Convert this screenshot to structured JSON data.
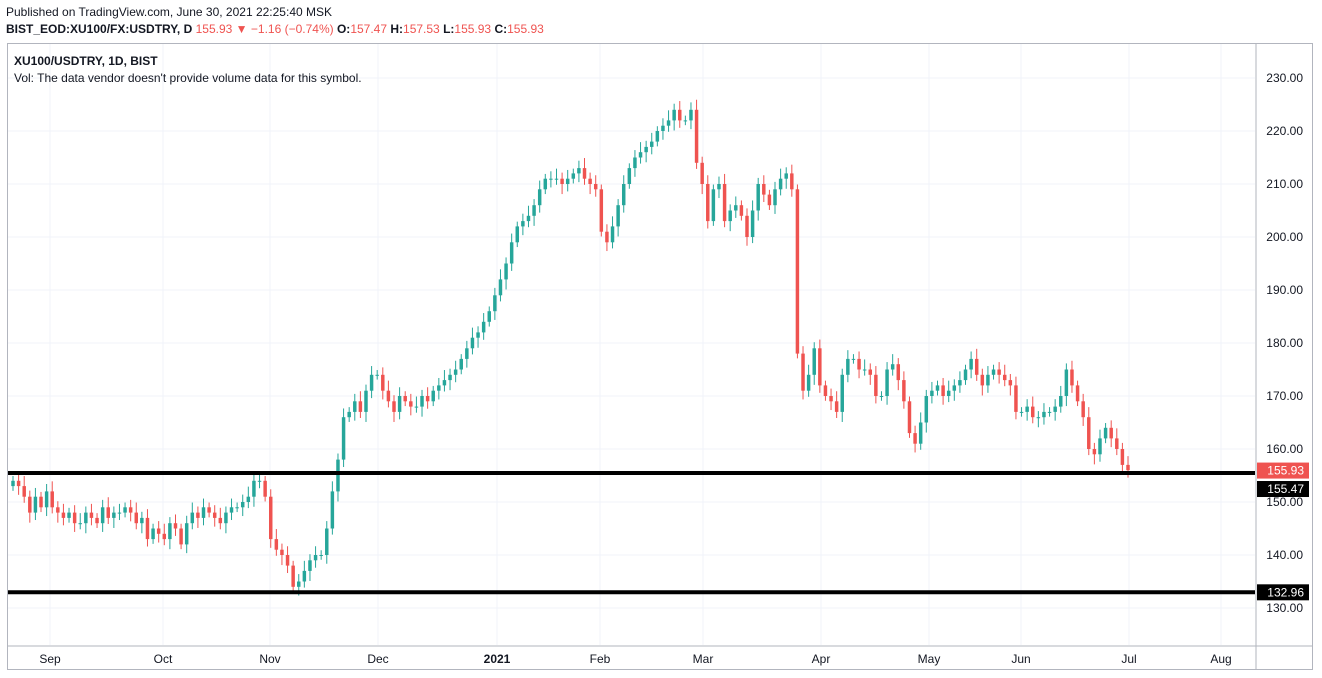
{
  "header": {
    "published": "Published on TradingView.com, June 30, 2021 22:25:40 MSK",
    "symbol_full": "BIST_EOD:XU100/FX:USDTRY, D",
    "last": "155.93",
    "down_arrow": "▼",
    "change": "−1.16 (−0.74%)",
    "o_label": "O:",
    "o_value": "157.47",
    "h_label": "H:",
    "h_value": "157.53",
    "l_label": "L:",
    "l_value": "155.93",
    "c_label": "C:",
    "c_value": "155.93"
  },
  "legend": {
    "title": "XU100/USDTRY, 1D, BIST",
    "volume_note": "Vol: The data vendor doesn't provide volume data for this symbol."
  },
  "chart_data": {
    "type": "candlestick",
    "y_ticks": [
      "130.00",
      "140.00",
      "150.00",
      "160.00",
      "170.00",
      "180.00",
      "190.00",
      "200.00",
      "210.00",
      "220.00",
      "230.00"
    ],
    "ylim": [
      126,
      234
    ],
    "x_ticks": [
      "Sep",
      "Oct",
      "Nov",
      "Dec",
      "2021",
      "Feb",
      "Mar",
      "Apr",
      "May",
      "Jun",
      "Jul",
      "Aug"
    ],
    "x_ticks_bold": [
      "2021"
    ],
    "grid": true,
    "colors": {
      "up": "#26a69a",
      "down": "#ef5350",
      "line": "#000000",
      "price_tag": "#ef5350",
      "level_tag": "#000000",
      "grid": "#f0f3fa"
    },
    "horizontal_lines": [
      155.47,
      132.96
    ],
    "price_tags": [
      {
        "label": "155.93",
        "value": 155.93,
        "kind": "last"
      },
      {
        "label": "155.47",
        "value": 155.47,
        "kind": "level"
      },
      {
        "label": "132.96",
        "value": 132.96,
        "kind": "level"
      }
    ],
    "closes": [
      154,
      153,
      151,
      148,
      151,
      149,
      152,
      149,
      148,
      147,
      148,
      146,
      146,
      148,
      147,
      146,
      149,
      147,
      148,
      148,
      149,
      148,
      146,
      147,
      143,
      145,
      144,
      143,
      146,
      145,
      142,
      146,
      148,
      147,
      149,
      148,
      147,
      146,
      148,
      149,
      149,
      150,
      151,
      154,
      154,
      151,
      143,
      141,
      140,
      138,
      134,
      135,
      137,
      139,
      140,
      140,
      145,
      152,
      158,
      166,
      167,
      169,
      167,
      171,
      174,
      174,
      171,
      169,
      167,
      170,
      169,
      168,
      168,
      170,
      169,
      171,
      172,
      173,
      174,
      175,
      177,
      179,
      181,
      182,
      184,
      186,
      189,
      192,
      195,
      199,
      202,
      203,
      204,
      206,
      209,
      211,
      211,
      211,
      210,
      211,
      212,
      213,
      211,
      210,
      209,
      201,
      199,
      202,
      206,
      210,
      213,
      215,
      216,
      217,
      218,
      220,
      221,
      222,
      224,
      222,
      222,
      224,
      214,
      210,
      203,
      209,
      210,
      203,
      205,
      206,
      204,
      200,
      205,
      210,
      208,
      206,
      209,
      211,
      212,
      209,
      178,
      171,
      174,
      179,
      172,
      170,
      169,
      167,
      174,
      177,
      177,
      175,
      175,
      174,
      170,
      170,
      175,
      176,
      173,
      169,
      163,
      161,
      165,
      170,
      171,
      172,
      170,
      171,
      172,
      173,
      175,
      177,
      174,
      172,
      174,
      175,
      174,
      173,
      172,
      167,
      167,
      168,
      166,
      166,
      167,
      167,
      168,
      170,
      175,
      172,
      169,
      166,
      160,
      159,
      162,
      164,
      162,
      160,
      157,
      156
    ],
    "last_value": 155.93
  }
}
